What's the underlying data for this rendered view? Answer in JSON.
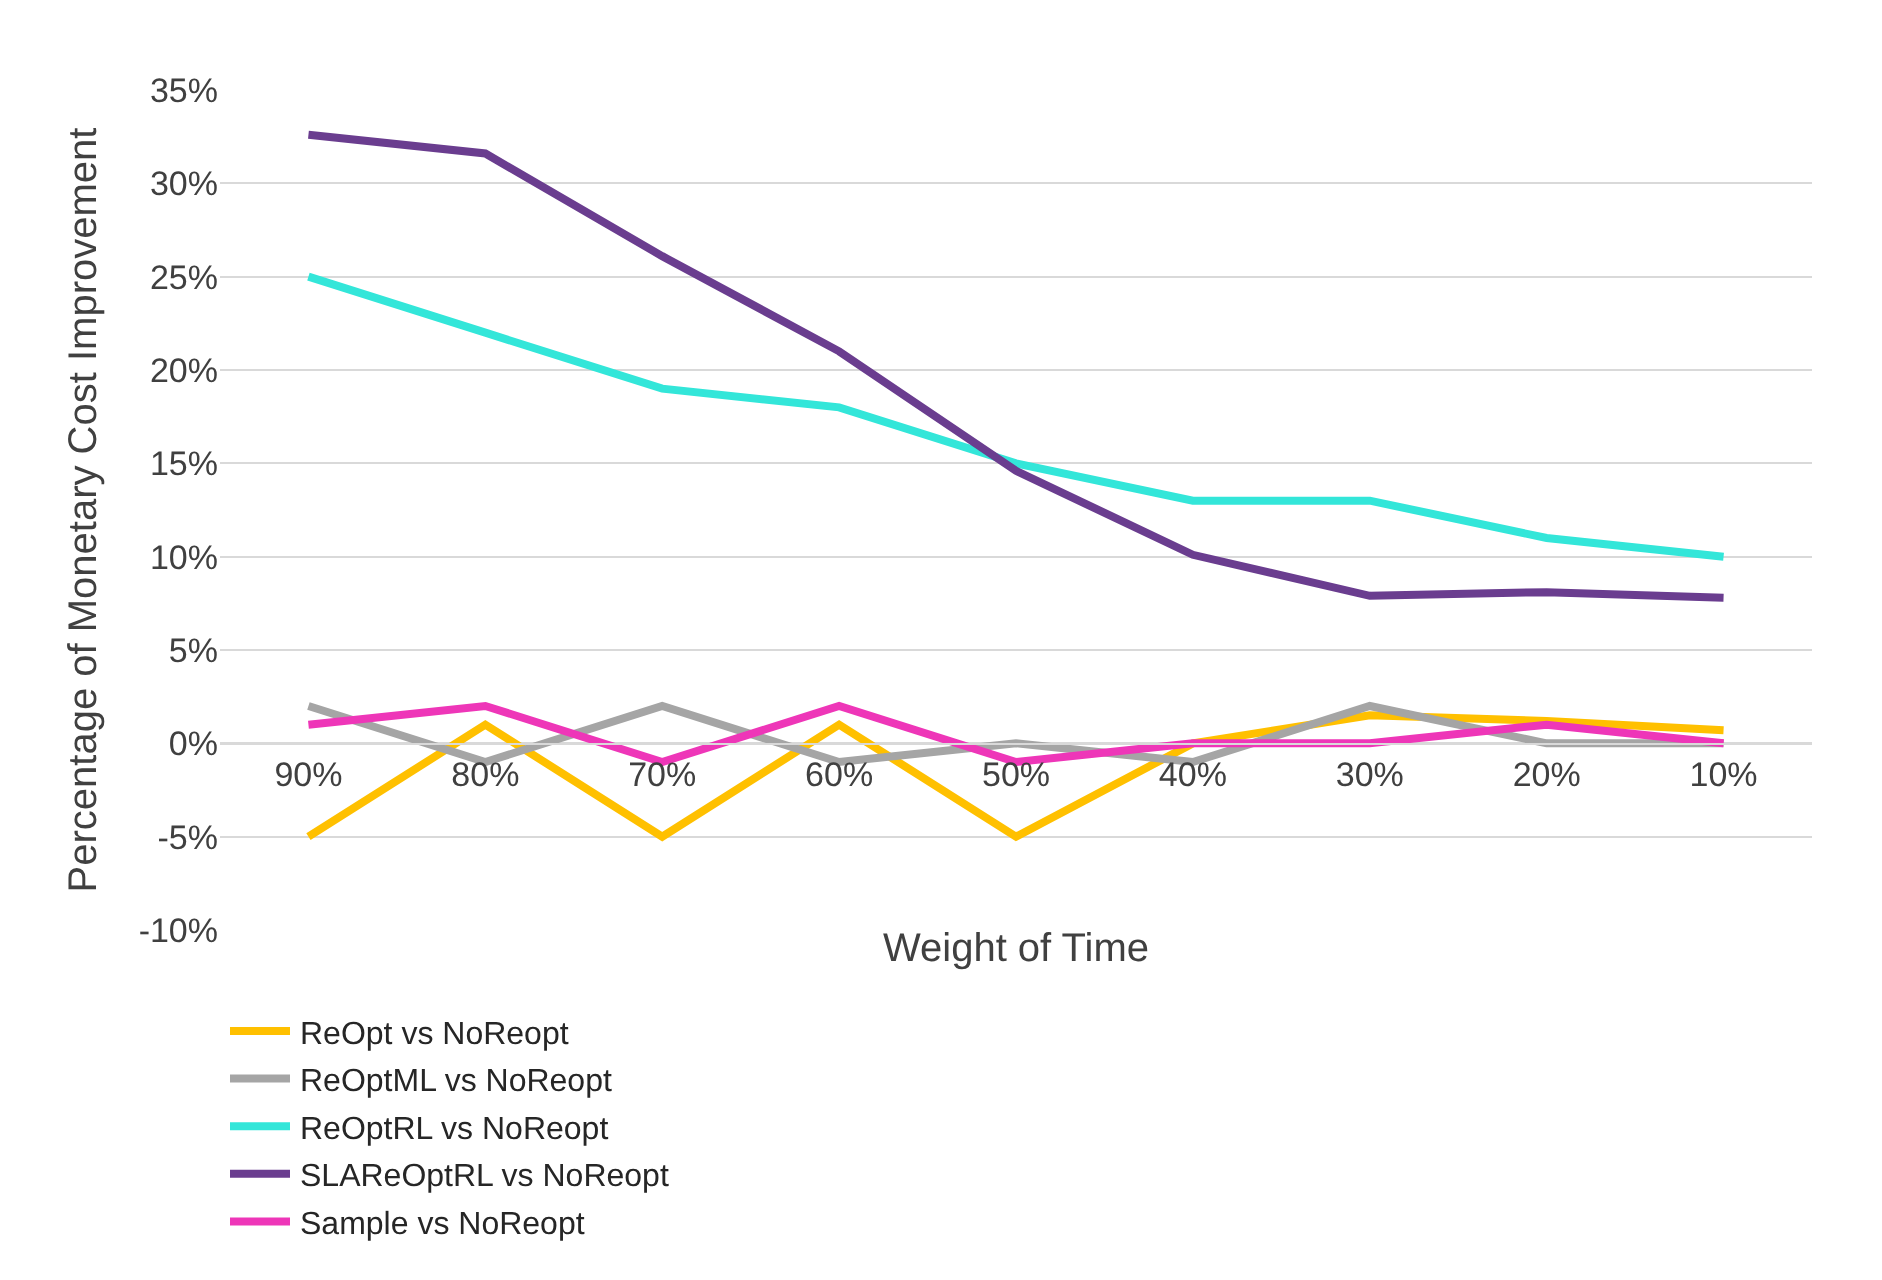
{
  "chart_data": {
    "type": "line",
    "xlabel": "Weight of Time",
    "ylabel": "Percentage of Monetary Cost Improvement",
    "categories": [
      "90%",
      "80%",
      "70%",
      "60%",
      "50%",
      "40%",
      "30%",
      "20%",
      "10%"
    ],
    "series": [
      {
        "name": "ReOpt vs NoReopt",
        "color": "#ffc000",
        "values": [
          -5,
          1,
          -5,
          1,
          -5,
          0,
          1.5,
          1.2,
          0.7
        ]
      },
      {
        "name": "ReOptML vs NoReopt",
        "color": "#a5a5a5",
        "values": [
          2,
          -1,
          2,
          -1,
          0,
          -1,
          2,
          0,
          0
        ]
      },
      {
        "name": "ReOptRL vs NoReopt",
        "color": "#33e6d9",
        "values": [
          25,
          22,
          19,
          18,
          15,
          13,
          13,
          11,
          10
        ]
      },
      {
        "name": "SLAReOptRL vs NoReopt",
        "color": "#6a3d8f",
        "values": [
          32.6,
          31.6,
          26.1,
          21,
          14.6,
          10.1,
          7.9,
          8.1,
          7.8
        ]
      },
      {
        "name": "Sample vs NoReopt",
        "color": "#ee36b8",
        "values": [
          1,
          2,
          -1,
          2,
          -1,
          0,
          0,
          1,
          0
        ]
      }
    ],
    "ylim": [
      -10,
      35
    ],
    "yticks": [
      {
        "value": -10,
        "label": "-10%"
      },
      {
        "value": -5,
        "label": "-5%"
      },
      {
        "value": 0,
        "label": "0%"
      },
      {
        "value": 5,
        "label": "5%"
      },
      {
        "value": 10,
        "label": "10%"
      },
      {
        "value": 15,
        "label": "15%"
      },
      {
        "value": 20,
        "label": "20%"
      },
      {
        "value": 25,
        "label": "25%"
      },
      {
        "value": 30,
        "label": "30%"
      },
      {
        "value": 35,
        "label": "35%"
      }
    ],
    "grid": "y",
    "legend": "bottom",
    "marker": "none",
    "line_style": "solid"
  }
}
